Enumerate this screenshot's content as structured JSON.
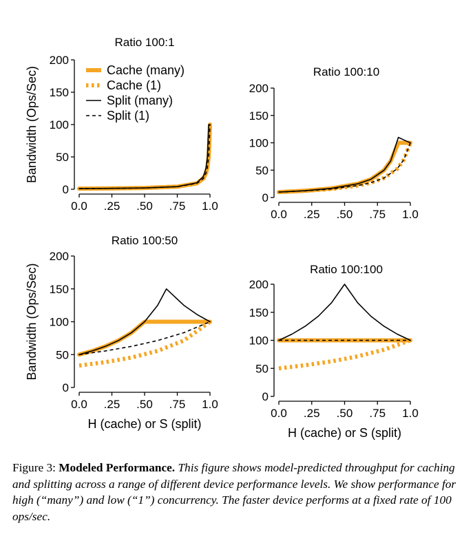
{
  "colors": {
    "cache": "#F5A623",
    "split": "#000000"
  },
  "caption": {
    "lead": "Figure 3: ",
    "name": "Modeled Performance.",
    "body": "This figure shows model-predicted throughput for caching and splitting across a range of different device performance levels. We show performance for high (“many”) and low (“1”) concurrency. The faster device performs at a fixed rate of 100 ops/sec."
  },
  "chart_data": [
    {
      "type": "line",
      "title": "Ratio 100:1",
      "ylabel": "Bandwidth (Ops/Sec)",
      "xlabel": "",
      "xlim": [
        0,
        1
      ],
      "ylim": [
        0,
        200
      ],
      "xticks": [
        "0.0",
        ".25",
        ".50",
        ".75",
        "1.0"
      ],
      "yticks": [
        "0",
        "50",
        "100",
        "150",
        "200"
      ],
      "legend": {
        "placement": "top-left",
        "entries": [
          "Cache (many)",
          "Cache (1)",
          "Split (many)",
          "Split (1)"
        ]
      },
      "series": [
        {
          "name": "Cache (many)",
          "style": "thick-solid",
          "x": [
            0,
            0.25,
            0.5,
            0.75,
            0.9,
            0.95,
            0.97,
            0.98,
            0.99,
            1.0
          ],
          "y": [
            1,
            1.33,
            2,
            4,
            9.2,
            16.8,
            25.2,
            33.6,
            50.3,
            100
          ]
        },
        {
          "name": "Cache (1)",
          "style": "thick-dotted",
          "x": [
            0,
            0.25,
            0.5,
            0.75,
            0.9,
            0.95,
            0.97,
            0.98,
            0.99,
            1.0
          ],
          "y": [
            1,
            1.33,
            2,
            4,
            9.2,
            16.8,
            25.2,
            33.6,
            50.3,
            100
          ]
        },
        {
          "name": "Split (many)",
          "style": "thin-solid",
          "x": [
            0,
            0.25,
            0.5,
            0.75,
            0.9,
            0.95,
            0.97,
            0.98,
            0.99,
            1.0
          ],
          "y": [
            1,
            1.33,
            2,
            4,
            10,
            20,
            33.3,
            50,
            100,
            100
          ]
        },
        {
          "name": "Split (1)",
          "style": "thin-dashed",
          "x": [
            0,
            0.25,
            0.5,
            0.75,
            0.9,
            0.95,
            0.97,
            0.98,
            0.99,
            1.0
          ],
          "y": [
            1,
            1.33,
            2,
            4,
            9.2,
            16.8,
            25.2,
            33.6,
            50.3,
            100
          ]
        }
      ]
    },
    {
      "type": "line",
      "title": "Ratio 100:10",
      "ylabel": "",
      "xlabel": "",
      "xlim": [
        0,
        1
      ],
      "ylim": [
        0,
        200
      ],
      "xticks": [
        "0.0",
        ".25",
        ".50",
        ".75",
        "1.0"
      ],
      "yticks": [
        "0",
        "50",
        "100",
        "150",
        "200"
      ],
      "series": [
        {
          "name": "Cache (many)",
          "style": "thick-solid",
          "x": [
            0,
            0.2,
            0.4,
            0.6,
            0.7,
            0.8,
            0.85,
            0.909,
            1.0
          ],
          "y": [
            10,
            12.5,
            16.7,
            25,
            33.3,
            50,
            66.7,
            100,
            100
          ]
        },
        {
          "name": "Cache (1)",
          "style": "thick-dotted",
          "x": [
            0,
            0.2,
            0.4,
            0.6,
            0.7,
            0.8,
            0.9,
            0.95,
            1.0
          ],
          "y": [
            10,
            12.2,
            15.6,
            21.7,
            27,
            35.7,
            52.6,
            69,
            100
          ]
        },
        {
          "name": "Split (many)",
          "style": "thin-solid",
          "x": [
            0,
            0.2,
            0.4,
            0.6,
            0.7,
            0.8,
            0.85,
            0.909,
            0.95,
            1.0
          ],
          "y": [
            10,
            12.5,
            16.7,
            25,
            33.3,
            50,
            66.7,
            110,
            105.3,
            100
          ]
        },
        {
          "name": "Split (1)",
          "style": "thin-dashed",
          "x": [
            0,
            0.2,
            0.4,
            0.6,
            0.7,
            0.8,
            0.9,
            0.95,
            1.0
          ],
          "y": [
            10,
            12.2,
            15.6,
            21.7,
            27,
            35.7,
            52.6,
            69,
            100
          ]
        }
      ]
    },
    {
      "type": "line",
      "title": "Ratio 100:50",
      "ylabel": "Bandwidth (Ops/Sec)",
      "xlabel": "H (cache) or S (split)",
      "xlim": [
        0,
        1
      ],
      "ylim": [
        0,
        200
      ],
      "xticks": [
        "0.0",
        ".25",
        ".50",
        ".75",
        "1.0"
      ],
      "yticks": [
        "0",
        "50",
        "100",
        "150",
        "200"
      ],
      "series": [
        {
          "name": "Cache (many)",
          "style": "thick-solid",
          "x": [
            0,
            0.1,
            0.2,
            0.3,
            0.4,
            0.5,
            0.6,
            0.7,
            0.8,
            0.9,
            1.0
          ],
          "y": [
            50,
            55.6,
            62.5,
            71.4,
            83.3,
            100,
            100,
            100,
            100,
            100,
            100
          ]
        },
        {
          "name": "Cache (1)",
          "style": "thick-dotted",
          "x": [
            0,
            0.2,
            0.4,
            0.6,
            0.8,
            1.0
          ],
          "y": [
            33.3,
            38.5,
            45.5,
            55.6,
            71.4,
            100
          ]
        },
        {
          "name": "Split (many)",
          "style": "thin-solid",
          "x": [
            0,
            0.1,
            0.2,
            0.3,
            0.4,
            0.5,
            0.6,
            0.667,
            0.8,
            0.9,
            1.0
          ],
          "y": [
            50,
            55.6,
            62.5,
            71.4,
            83.3,
            100,
            125,
            150,
            125,
            111.1,
            100
          ]
        },
        {
          "name": "Split (1)",
          "style": "thin-dashed",
          "x": [
            0,
            0.2,
            0.4,
            0.6,
            0.8,
            1.0
          ],
          "y": [
            50,
            55.6,
            62.5,
            71.4,
            83.3,
            100
          ]
        }
      ]
    },
    {
      "type": "line",
      "title": "Ratio 100:100",
      "ylabel": "",
      "xlabel": "H (cache) or S (split)",
      "xlim": [
        0,
        1
      ],
      "ylim": [
        0,
        200
      ],
      "xticks": [
        "0.0",
        ".25",
        ".50",
        ".75",
        "1.0"
      ],
      "yticks": [
        "0",
        "50",
        "100",
        "150",
        "200"
      ],
      "series": [
        {
          "name": "Cache (many)",
          "style": "thick-solid",
          "x": [
            0,
            1.0
          ],
          "y": [
            100,
            100
          ]
        },
        {
          "name": "Cache (1)",
          "style": "thick-dotted",
          "x": [
            0,
            0.2,
            0.4,
            0.6,
            0.8,
            1.0
          ],
          "y": [
            50,
            55.6,
            62.5,
            71.4,
            83.3,
            100
          ]
        },
        {
          "name": "Split (many)",
          "style": "thin-solid",
          "x": [
            0,
            0.1,
            0.2,
            0.3,
            0.4,
            0.5,
            0.6,
            0.7,
            0.8,
            0.9,
            1.0
          ],
          "y": [
            100,
            111.1,
            125,
            142.9,
            166.7,
            200,
            166.7,
            142.9,
            125,
            111.1,
            100
          ]
        },
        {
          "name": "Split (1)",
          "style": "thin-dashed",
          "x": [
            0,
            1.0
          ],
          "y": [
            100,
            100
          ]
        }
      ]
    }
  ]
}
